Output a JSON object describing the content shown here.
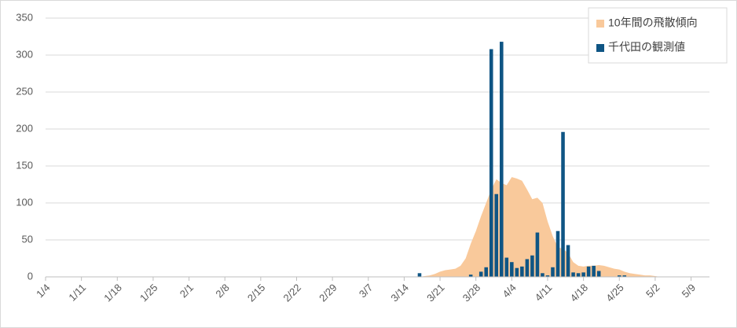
{
  "chart_data": {
    "type": "bar-area",
    "categories": [
      "1/4",
      null,
      null,
      null,
      null,
      null,
      null,
      "1/11",
      null,
      null,
      null,
      null,
      null,
      null,
      "1/18",
      null,
      null,
      null,
      null,
      null,
      null,
      "1/25",
      null,
      null,
      null,
      null,
      null,
      null,
      "2/1",
      null,
      null,
      null,
      null,
      null,
      null,
      "2/8",
      null,
      null,
      null,
      null,
      null,
      null,
      "2/15",
      null,
      null,
      null,
      null,
      null,
      null,
      "2/22",
      null,
      null,
      null,
      null,
      null,
      null,
      "2/29",
      null,
      null,
      null,
      null,
      null,
      null,
      "3/7",
      null,
      null,
      null,
      null,
      null,
      null,
      "3/14",
      null,
      null,
      null,
      null,
      null,
      null,
      "3/21",
      null,
      null,
      null,
      null,
      null,
      null,
      "3/28",
      null,
      null,
      null,
      null,
      null,
      null,
      "4/4",
      null,
      null,
      null,
      null,
      null,
      null,
      "4/11",
      null,
      null,
      null,
      null,
      null,
      null,
      "4/18",
      null,
      null,
      null,
      null,
      null,
      null,
      "4/25",
      null,
      null,
      null,
      null,
      null,
      null,
      "5/2",
      null,
      null,
      null,
      null,
      null,
      null,
      "5/9",
      null,
      null,
      null,
      null
    ],
    "series": [
      {
        "name": "10年間の飛散傾向",
        "kind": "area",
        "color": "#f9c99b",
        "values": [
          0,
          0,
          0,
          0,
          0,
          0,
          0,
          0,
          0,
          0,
          0,
          0,
          0,
          0,
          0,
          0,
          0,
          0,
          0,
          0,
          0,
          0,
          0,
          0,
          0,
          0,
          0,
          0,
          0,
          0,
          0,
          0,
          0,
          0,
          0,
          0,
          0,
          0,
          0,
          0,
          0,
          0,
          0,
          0,
          0,
          0,
          0,
          0,
          0,
          0,
          0,
          0,
          0,
          0,
          0,
          0,
          0,
          0,
          0,
          0,
          0,
          0,
          0,
          0,
          0,
          0,
          0,
          0,
          0,
          0,
          0,
          0,
          0,
          0,
          1,
          2,
          4,
          7,
          9,
          10,
          11,
          15,
          25,
          45,
          62,
          82,
          100,
          118,
          132,
          127,
          124,
          135,
          133,
          130,
          118,
          105,
          107,
          100,
          75,
          55,
          40,
          38,
          32,
          20,
          15,
          14,
          15,
          15,
          16,
          15,
          13,
          11,
          10,
          7,
          5,
          4,
          3,
          2,
          2,
          1,
          0,
          0,
          0,
          0,
          0,
          0,
          0,
          0,
          0,
          0,
          0
        ]
      },
      {
        "name": "千代田の観測値",
        "kind": "bar",
        "color": "#0f5584",
        "values": [
          0,
          0,
          0,
          0,
          0,
          0,
          0,
          0,
          0,
          0,
          0,
          0,
          0,
          0,
          0,
          0,
          0,
          0,
          0,
          0,
          0,
          0,
          0,
          0,
          0,
          0,
          0,
          0,
          0,
          0,
          0,
          0,
          0,
          0,
          0,
          0,
          0,
          0,
          0,
          0,
          0,
          0,
          0,
          0,
          0,
          0,
          0,
          0,
          0,
          0,
          0,
          0,
          0,
          0,
          0,
          0,
          0,
          0,
          0,
          0,
          0,
          0,
          0,
          0,
          0,
          0,
          0,
          0,
          0,
          0,
          0,
          0,
          0,
          5,
          0,
          0,
          0,
          0,
          0,
          0,
          0,
          0,
          0,
          3,
          0,
          7,
          13,
          308,
          112,
          318,
          26,
          20,
          12,
          14,
          24,
          29,
          60,
          5,
          2,
          13,
          62,
          196,
          43,
          6,
          5,
          6,
          14,
          15,
          8,
          0,
          0,
          0,
          2,
          2,
          0,
          0,
          0,
          0,
          0,
          0,
          0,
          0,
          0,
          0,
          0,
          0,
          0,
          0,
          0,
          0,
          0
        ]
      }
    ],
    "ylim": [
      0,
      350
    ],
    "yticks": [
      0,
      50,
      100,
      150,
      200,
      250,
      300,
      350
    ],
    "grid": true,
    "legend": "top-right"
  }
}
